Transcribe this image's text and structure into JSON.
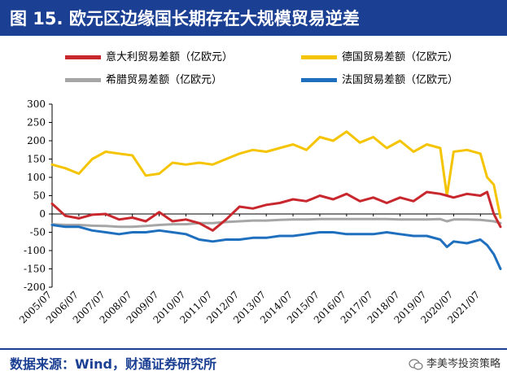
{
  "header": {
    "title": "图 15. 欧元区边缘国长期存在大规模贸易逆差"
  },
  "footer": {
    "source": "数据来源：Wind，财通证券研究所",
    "watermark": "李美岑投资策略"
  },
  "colors": {
    "italy": "#c8282d",
    "germany": "#f5c400",
    "greece": "#a6a6a6",
    "france": "#1f6fbf",
    "title_bg": "#1b3f92"
  },
  "chart_data": {
    "type": "line",
    "title": "",
    "xlabel": "",
    "ylabel": "",
    "ylim": [
      -200,
      300
    ],
    "yticks": [
      300,
      250,
      200,
      150,
      100,
      50,
      0,
      -50,
      -100,
      -150,
      -200
    ],
    "x_start": "2005/07",
    "x_end": "2022/04",
    "xtick_labels": [
      "2005/07",
      "2006/07",
      "2007/07",
      "2008/07",
      "2009/07",
      "2010/07",
      "2011/07",
      "2012/07",
      "2013/07",
      "2014/07",
      "2015/07",
      "2016/07",
      "2017/07",
      "2018/07",
      "2019/07",
      "2020/07",
      "2021/07"
    ],
    "x": [
      "2005/07",
      "2006/01",
      "2006/07",
      "2007/01",
      "2007/07",
      "2008/01",
      "2008/07",
      "2009/01",
      "2009/07",
      "2010/01",
      "2010/07",
      "2011/01",
      "2011/07",
      "2012/01",
      "2012/07",
      "2013/01",
      "2013/07",
      "2014/01",
      "2014/07",
      "2015/01",
      "2015/07",
      "2016/01",
      "2016/07",
      "2017/01",
      "2017/07",
      "2018/01",
      "2018/07",
      "2019/01",
      "2019/07",
      "2020/01",
      "2020/04",
      "2020/07",
      "2021/01",
      "2021/07",
      "2021/10",
      "2022/01",
      "2022/04"
    ],
    "series": [
      {
        "name": "意大利贸易差额（亿欧元）",
        "color_key": "italy",
        "values": [
          28,
          -5,
          -12,
          -2,
          0,
          -15,
          -10,
          -20,
          5,
          -20,
          -15,
          -25,
          -45,
          -15,
          20,
          15,
          25,
          30,
          40,
          35,
          50,
          40,
          55,
          35,
          45,
          30,
          45,
          35,
          60,
          55,
          50,
          45,
          55,
          50,
          60,
          0,
          -35
        ]
      },
      {
        "name": "德国贸易差额（亿欧元）",
        "color_key": "germany",
        "values": [
          135,
          125,
          110,
          150,
          170,
          165,
          160,
          105,
          110,
          140,
          135,
          140,
          135,
          150,
          165,
          175,
          170,
          180,
          190,
          175,
          210,
          200,
          225,
          195,
          210,
          180,
          200,
          170,
          190,
          180,
          50,
          170,
          175,
          165,
          100,
          80,
          -10
        ]
      },
      {
        "name": "希腊贸易差额（亿欧元）",
        "color_key": "greece",
        "values": [
          -28,
          -30,
          -30,
          -32,
          -33,
          -35,
          -35,
          -33,
          -30,
          -28,
          -28,
          -25,
          -25,
          -22,
          -20,
          -18,
          -18,
          -16,
          -15,
          -15,
          -14,
          -14,
          -14,
          -14,
          -14,
          -14,
          -15,
          -15,
          -15,
          -14,
          -20,
          -15,
          -15,
          -16,
          -18,
          -20,
          -25
        ]
      },
      {
        "name": "法国贸易差额（亿欧元）",
        "color_key": "france",
        "values": [
          -30,
          -35,
          -35,
          -45,
          -50,
          -55,
          -50,
          -50,
          -45,
          -50,
          -55,
          -70,
          -75,
          -70,
          -70,
          -65,
          -65,
          -60,
          -60,
          -55,
          -50,
          -50,
          -55,
          -55,
          -55,
          -50,
          -55,
          -60,
          -60,
          -70,
          -90,
          -75,
          -80,
          -70,
          -85,
          -110,
          -150
        ]
      }
    ]
  }
}
